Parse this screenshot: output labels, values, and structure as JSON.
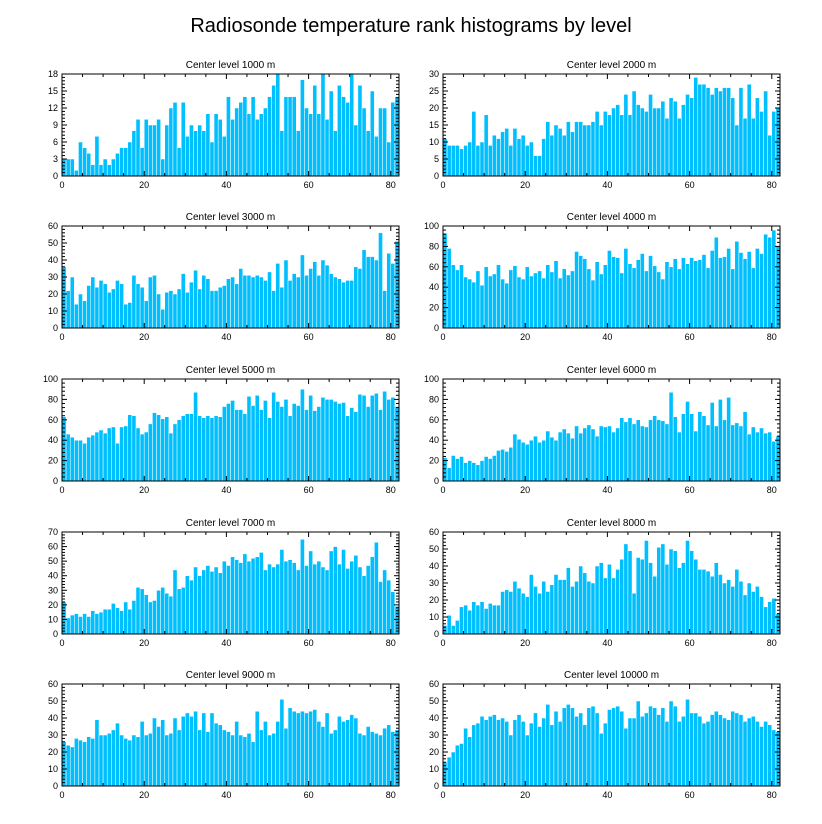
{
  "figure_title": "Radiosonde temperature rank histograms by level",
  "colors": {
    "bar": "#00bfff",
    "bar_edge": "#ffffff",
    "axis": "#000000"
  },
  "chart_data": [
    {
      "type": "bar",
      "title": "Center level 1000 m",
      "xlim": [
        0,
        82
      ],
      "ylim": [
        0,
        18
      ],
      "xticks": [
        0,
        20,
        40,
        60,
        80
      ],
      "yticks": [
        0,
        3,
        6,
        9,
        12,
        15,
        18
      ],
      "values": [
        3,
        3,
        3,
        1,
        6,
        5,
        4,
        2,
        7,
        2,
        3,
        2,
        3,
        4,
        5,
        5,
        6,
        8,
        10,
        5,
        10,
        9,
        9,
        10,
        3,
        9,
        12,
        13,
        5,
        13,
        7,
        9,
        8,
        9,
        8,
        11,
        6,
        11,
        10,
        7,
        14,
        10,
        12,
        13,
        14,
        11,
        14,
        10,
        11,
        12,
        14,
        16,
        18,
        8,
        14,
        14,
        14,
        8,
        17,
        12,
        11,
        16,
        11,
        18,
        10,
        15,
        8,
        16,
        14,
        13,
        18,
        9,
        16,
        12,
        8,
        15,
        7,
        12,
        12,
        6,
        13,
        14
      ]
    },
    {
      "type": "bar",
      "title": "Center level 2000 m",
      "xlim": [
        0,
        82
      ],
      "ylim": [
        0,
        30
      ],
      "xticks": [
        0,
        20,
        40,
        60,
        80
      ],
      "yticks": [
        0,
        5,
        10,
        15,
        20,
        25,
        30
      ],
      "values": [
        11,
        9,
        9,
        9,
        8,
        9,
        10,
        19,
        9,
        10,
        18,
        9,
        12,
        11,
        13,
        14,
        9,
        14,
        11,
        12,
        9,
        10,
        6,
        6,
        11,
        16,
        12,
        15,
        14,
        12,
        16,
        13,
        16,
        16,
        15,
        15,
        16,
        19,
        15,
        19,
        18,
        20,
        21,
        18,
        24,
        18,
        25,
        21,
        20,
        19,
        24,
        20,
        20,
        22,
        17,
        23,
        22,
        17,
        21,
        24,
        23,
        29,
        27,
        27,
        26,
        24,
        26,
        25,
        26,
        26,
        23,
        15,
        26,
        17,
        27,
        17,
        23,
        19,
        25,
        12,
        19,
        20
      ]
    },
    {
      "type": "bar",
      "title": "Center level 3000 m",
      "xlim": [
        0,
        82
      ],
      "ylim": [
        0,
        60
      ],
      "xticks": [
        0,
        20,
        40,
        60,
        80
      ],
      "yticks": [
        0,
        10,
        20,
        30,
        40,
        50,
        60
      ],
      "values": [
        36,
        22,
        30,
        14,
        20,
        16,
        25,
        30,
        24,
        28,
        26,
        21,
        23,
        28,
        26,
        14,
        15,
        31,
        26,
        24,
        16,
        30,
        31,
        20,
        11,
        21,
        22,
        20,
        23,
        32,
        21,
        27,
        34,
        23,
        31,
        29,
        22,
        22,
        24,
        25,
        29,
        30,
        26,
        35,
        31,
        31,
        30,
        31,
        30,
        28,
        33,
        22,
        38,
        24,
        40,
        28,
        32,
        30,
        43,
        31,
        35,
        39,
        31,
        40,
        37,
        32,
        30,
        29,
        27,
        28,
        28,
        36,
        35,
        46,
        42,
        42,
        40,
        56,
        22,
        44,
        38,
        51
      ]
    },
    {
      "type": "bar",
      "title": "Center level 4000 m",
      "xlim": [
        0,
        82
      ],
      "ylim": [
        0,
        100
      ],
      "xticks": [
        0,
        20,
        40,
        60,
        80
      ],
      "yticks": [
        0,
        20,
        40,
        60,
        80,
        100
      ],
      "values": [
        93,
        78,
        62,
        57,
        62,
        50,
        48,
        45,
        56,
        42,
        60,
        51,
        53,
        62,
        48,
        44,
        57,
        61,
        50,
        48,
        60,
        51,
        54,
        56,
        49,
        62,
        55,
        66,
        49,
        58,
        52,
        56,
        75,
        71,
        68,
        58,
        47,
        65,
        53,
        62,
        76,
        70,
        69,
        54,
        78,
        63,
        59,
        67,
        73,
        56,
        71,
        61,
        55,
        48,
        65,
        60,
        68,
        58,
        69,
        63,
        69,
        66,
        67,
        72,
        59,
        76,
        89,
        69,
        70,
        78,
        58,
        85,
        74,
        68,
        75,
        59,
        78,
        73,
        92,
        89,
        96,
        80
      ]
    },
    {
      "type": "bar",
      "title": "Center level 5000 m",
      "xlim": [
        0,
        82
      ],
      "ylim": [
        0,
        100
      ],
      "xticks": [
        0,
        20,
        40,
        60,
        80
      ],
      "yticks": [
        0,
        20,
        40,
        60,
        80,
        100
      ],
      "values": [
        63,
        46,
        43,
        40,
        40,
        37,
        43,
        45,
        48,
        50,
        47,
        52,
        53,
        37,
        53,
        54,
        65,
        64,
        52,
        46,
        48,
        56,
        67,
        65,
        61,
        63,
        47,
        56,
        60,
        64,
        66,
        66,
        87,
        64,
        62,
        64,
        62,
        64,
        63,
        73,
        76,
        79,
        70,
        70,
        66,
        83,
        74,
        84,
        70,
        79,
        62,
        87,
        78,
        73,
        80,
        64,
        76,
        74,
        90,
        70,
        84,
        69,
        73,
        82,
        80,
        80,
        78,
        76,
        77,
        64,
        72,
        68,
        85,
        84,
        73,
        84,
        86,
        70,
        88,
        80,
        82,
        73
      ]
    },
    {
      "type": "bar",
      "title": "Center level 6000 m",
      "xlim": [
        0,
        82
      ],
      "ylim": [
        0,
        100
      ],
      "xticks": [
        0,
        20,
        40,
        60,
        80
      ],
      "yticks": [
        0,
        20,
        40,
        60,
        80,
        100
      ],
      "values": [
        23,
        13,
        25,
        22,
        24,
        18,
        20,
        18,
        16,
        20,
        24,
        22,
        25,
        30,
        31,
        29,
        33,
        46,
        41,
        38,
        36,
        40,
        44,
        38,
        40,
        49,
        43,
        40,
        48,
        51,
        47,
        42,
        54,
        47,
        52,
        55,
        51,
        44,
        54,
        53,
        54,
        48,
        52,
        62,
        58,
        62,
        56,
        60,
        54,
        53,
        60,
        64,
        60,
        59,
        56,
        87,
        63,
        48,
        66,
        78,
        66,
        49,
        68,
        64,
        55,
        77,
        54,
        80,
        60,
        82,
        55,
        57,
        54,
        68,
        46,
        53,
        48,
        52,
        47,
        48,
        39,
        44
      ]
    },
    {
      "type": "bar",
      "title": "Center level 7000 m",
      "xlim": [
        0,
        82
      ],
      "ylim": [
        0,
        70
      ],
      "xticks": [
        0,
        20,
        40,
        60,
        80
      ],
      "yticks": [
        0,
        10,
        20,
        30,
        40,
        50,
        60,
        70
      ],
      "values": [
        22,
        11,
        13,
        14,
        12,
        14,
        12,
        16,
        14,
        15,
        17,
        17,
        21,
        18,
        16,
        22,
        17,
        23,
        32,
        31,
        27,
        22,
        23,
        30,
        32,
        28,
        26,
        44,
        31,
        32,
        40,
        37,
        46,
        40,
        44,
        47,
        43,
        46,
        42,
        50,
        47,
        53,
        51,
        49,
        55,
        50,
        52,
        53,
        56,
        44,
        48,
        46,
        48,
        58,
        50,
        51,
        49,
        44,
        65,
        47,
        57,
        48,
        50,
        46,
        44,
        57,
        60,
        48,
        58,
        45,
        50,
        54,
        46,
        40,
        47,
        53,
        63,
        36,
        44,
        37,
        29,
        19
      ]
    },
    {
      "type": "bar",
      "title": "Center level 8000 m",
      "xlim": [
        0,
        82
      ],
      "ylim": [
        0,
        60
      ],
      "xticks": [
        0,
        20,
        40,
        60,
        80
      ],
      "yticks": [
        0,
        10,
        20,
        30,
        40,
        50,
        60
      ],
      "values": [
        5,
        11,
        5,
        8,
        16,
        17,
        14,
        19,
        17,
        19,
        15,
        18,
        17,
        17,
        25,
        26,
        25,
        31,
        27,
        24,
        22,
        35,
        28,
        24,
        31,
        25,
        29,
        35,
        32,
        32,
        39,
        28,
        31,
        40,
        36,
        31,
        30,
        40,
        42,
        33,
        41,
        33,
        38,
        44,
        53,
        49,
        24,
        45,
        44,
        55,
        42,
        34,
        51,
        53,
        41,
        50,
        49,
        39,
        42,
        55,
        49,
        44,
        38,
        38,
        37,
        34,
        42,
        35,
        30,
        32,
        28,
        38,
        31,
        23,
        30,
        25,
        28,
        22,
        16,
        19,
        21,
        12
      ]
    },
    {
      "type": "bar",
      "title": "Center level 9000 m",
      "xlim": [
        0,
        82
      ],
      "ylim": [
        0,
        60
      ],
      "xticks": [
        0,
        20,
        40,
        60,
        80
      ],
      "yticks": [
        0,
        10,
        20,
        30,
        40,
        50,
        60
      ],
      "values": [
        26,
        24,
        23,
        28,
        27,
        26,
        29,
        28,
        39,
        30,
        30,
        31,
        33,
        37,
        30,
        28,
        27,
        30,
        29,
        38,
        30,
        31,
        40,
        35,
        39,
        30,
        31,
        40,
        33,
        41,
        43,
        41,
        44,
        33,
        43,
        32,
        43,
        37,
        36,
        33,
        32,
        30,
        38,
        30,
        29,
        31,
        26,
        44,
        33,
        38,
        30,
        31,
        38,
        51,
        34,
        46,
        44,
        43,
        44,
        43,
        44,
        45,
        38,
        35,
        43,
        31,
        33,
        41,
        38,
        39,
        42,
        40,
        31,
        30,
        35,
        32,
        31,
        30,
        34,
        36,
        32,
        33
      ]
    },
    {
      "type": "bar",
      "title": "Center level 10000 m",
      "xlim": [
        0,
        82
      ],
      "ylim": [
        0,
        60
      ],
      "xticks": [
        0,
        20,
        40,
        60,
        80
      ],
      "yticks": [
        0,
        10,
        20,
        30,
        40,
        50,
        60
      ],
      "values": [
        14,
        17,
        20,
        24,
        25,
        34,
        29,
        36,
        37,
        41,
        39,
        41,
        42,
        39,
        40,
        38,
        30,
        39,
        42,
        38,
        30,
        37,
        43,
        35,
        40,
        48,
        36,
        44,
        38,
        46,
        48,
        46,
        41,
        43,
        36,
        46,
        47,
        43,
        31,
        37,
        45,
        46,
        47,
        44,
        34,
        40,
        40,
        50,
        41,
        43,
        47,
        46,
        42,
        46,
        38,
        50,
        47,
        38,
        41,
        51,
        43,
        43,
        41,
        37,
        38,
        42,
        44,
        42,
        40,
        39,
        44,
        43,
        42,
        38,
        40,
        41,
        38,
        35,
        38,
        36,
        33,
        32
      ]
    }
  ]
}
